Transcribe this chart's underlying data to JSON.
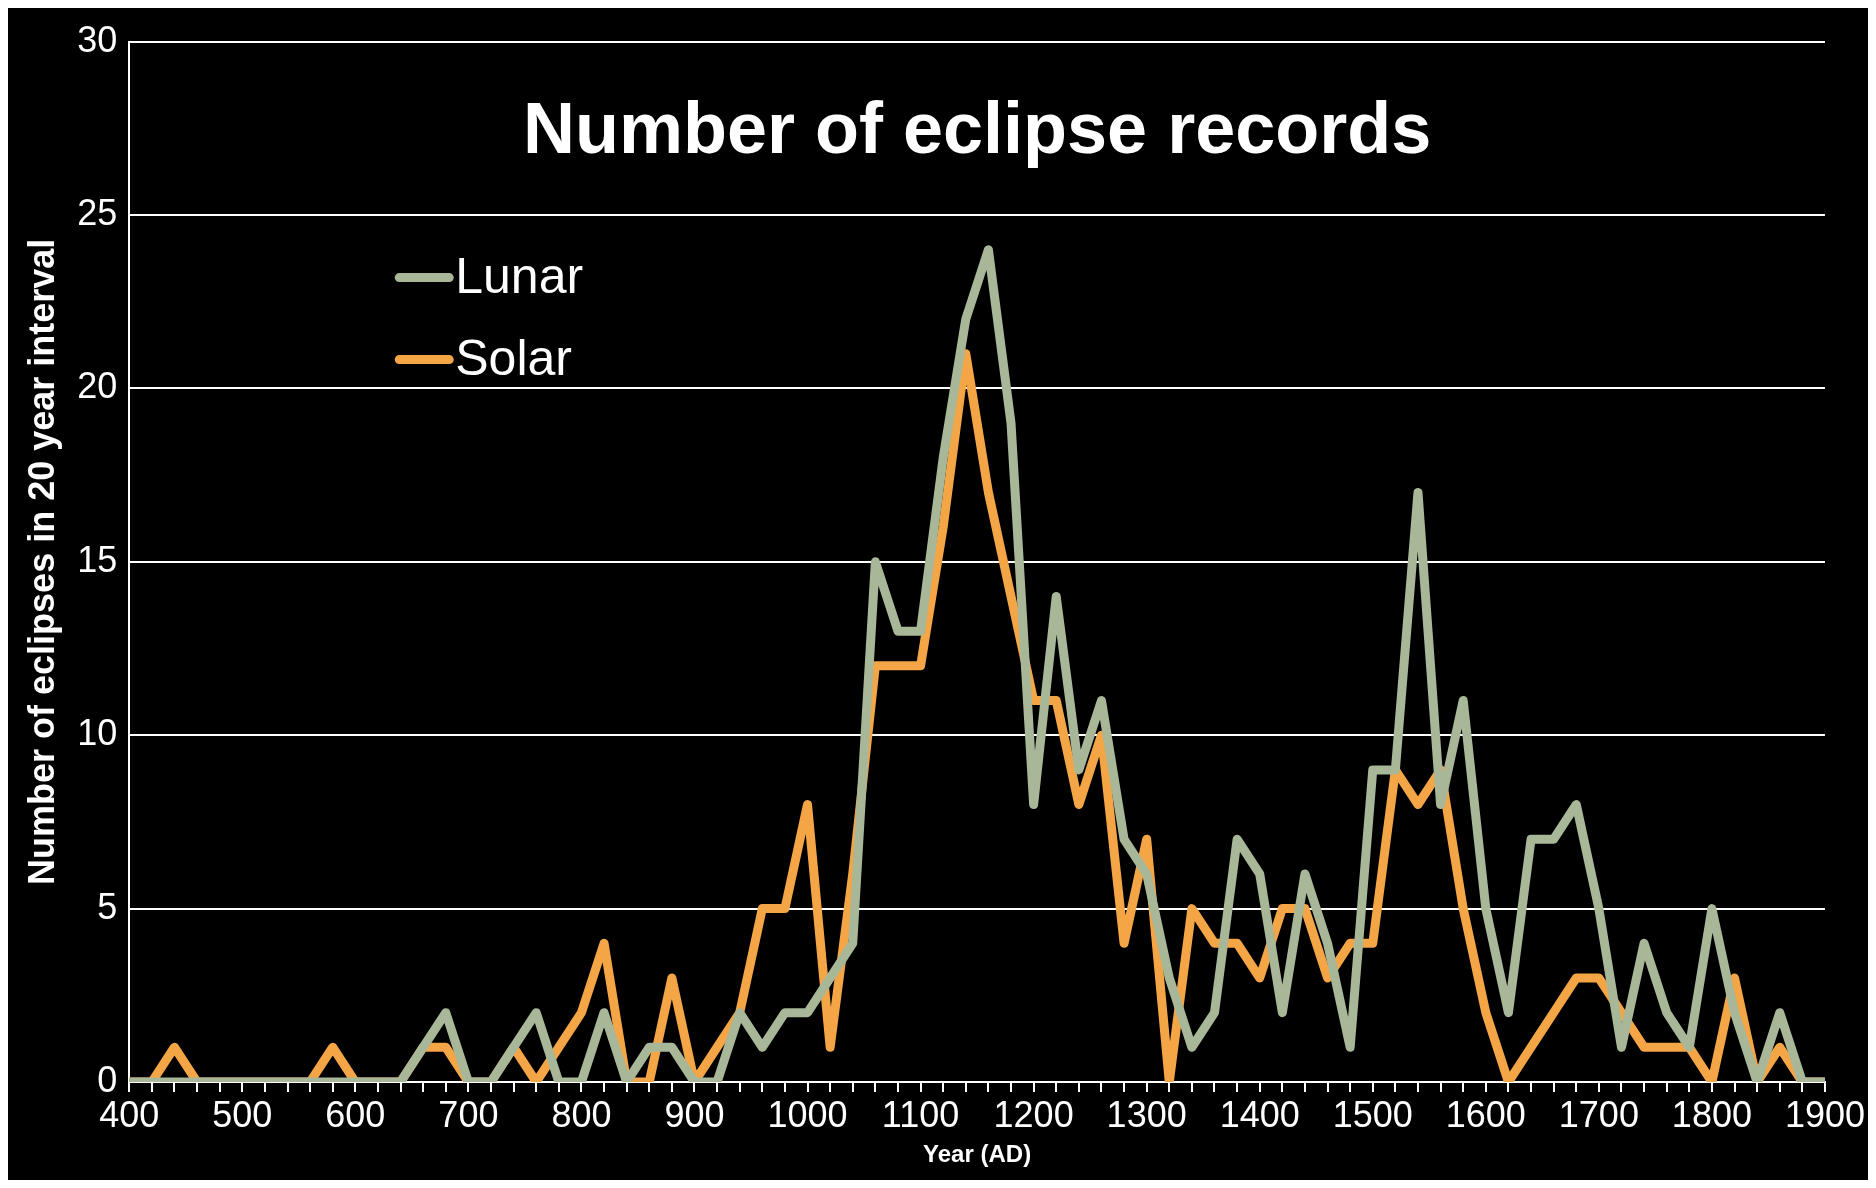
{
  "chart_data": {
    "type": "line",
    "title": "Number of eclipse records",
    "xlabel": "Year (AD)",
    "ylabel": "Number of eclipses in 20 year interval",
    "x": [
      400,
      420,
      440,
      460,
      480,
      500,
      520,
      540,
      560,
      580,
      600,
      620,
      640,
      660,
      680,
      700,
      720,
      740,
      760,
      780,
      800,
      820,
      840,
      860,
      880,
      900,
      920,
      940,
      960,
      980,
      1000,
      1020,
      1040,
      1060,
      1080,
      1100,
      1120,
      1140,
      1160,
      1180,
      1200,
      1220,
      1240,
      1260,
      1280,
      1300,
      1320,
      1340,
      1360,
      1380,
      1400,
      1420,
      1440,
      1460,
      1480,
      1500,
      1520,
      1540,
      1560,
      1580,
      1600,
      1620,
      1640,
      1660,
      1680,
      1700,
      1720,
      1740,
      1760,
      1780,
      1800,
      1820,
      1840,
      1860,
      1880,
      1900
    ],
    "series": [
      {
        "name": "Lunar",
        "color": "#a7b797",
        "values": [
          0,
          0,
          0,
          0,
          0,
          0,
          0,
          0,
          0,
          0,
          0,
          0,
          0,
          1,
          2,
          0,
          0,
          1,
          2,
          0,
          0,
          2,
          0,
          1,
          1,
          0,
          0,
          2,
          1,
          2,
          2,
          3,
          4,
          15,
          13,
          13,
          18,
          22,
          24,
          19,
          8,
          14,
          9,
          11,
          7,
          6,
          3,
          1,
          2,
          7,
          6,
          2,
          6,
          4,
          1,
          9,
          9,
          17,
          8,
          11,
          5,
          2,
          7,
          7,
          8,
          5,
          1,
          4,
          2,
          1,
          5,
          2,
          0,
          2,
          0,
          0
        ]
      },
      {
        "name": "Solar",
        "color": "#f4a546",
        "values": [
          0,
          0,
          1,
          0,
          0,
          0,
          0,
          0,
          0,
          1,
          0,
          0,
          0,
          1,
          1,
          0,
          0,
          1,
          0,
          1,
          2,
          4,
          0,
          0,
          3,
          0,
          1,
          2,
          5,
          5,
          8,
          1,
          6,
          12,
          12,
          12,
          16,
          21,
          17,
          14,
          11,
          11,
          8,
          10,
          4,
          7,
          0,
          5,
          4,
          4,
          3,
          5,
          5,
          3,
          4,
          4,
          9,
          8,
          9,
          5,
          2,
          0,
          1,
          2,
          3,
          3,
          2,
          1,
          1,
          1,
          0,
          3,
          0,
          1,
          0,
          0
        ]
      }
    ],
    "xlim": [
      400,
      1900
    ],
    "xticks": [
      400,
      {
        "value": 420,
        "label": null
      },
      {
        "value": 440,
        "label": null
      },
      {
        "value": 460,
        "label": null
      },
      {
        "value": 480,
        "label": null
      },
      500,
      {
        "value": 520,
        "label": null
      },
      {
        "value": 540,
        "label": null
      },
      {
        "value": 560,
        "label": null
      },
      {
        "value": 580,
        "label": null
      },
      600,
      {
        "value": 620,
        "label": null
      },
      {
        "value": 640,
        "label": null
      },
      {
        "value": 660,
        "label": null
      },
      {
        "value": 680,
        "label": null
      },
      700,
      {
        "value": 720,
        "label": null
      },
      {
        "value": 740,
        "label": null
      },
      {
        "value": 760,
        "label": null
      },
      {
        "value": 780,
        "label": null
      },
      800,
      {
        "value": 820,
        "label": null
      },
      {
        "value": 840,
        "label": null
      },
      {
        "value": 860,
        "label": null
      },
      {
        "value": 880,
        "label": null
      },
      900,
      {
        "value": 920,
        "label": null
      },
      {
        "value": 940,
        "label": null
      },
      {
        "value": 960,
        "label": null
      },
      {
        "value": 980,
        "label": null
      },
      1000,
      {
        "value": 1020,
        "label": null
      },
      {
        "value": 1040,
        "label": null
      },
      {
        "value": 1060,
        "label": null
      },
      {
        "value": 1080,
        "label": null
      },
      1100,
      {
        "value": 1120,
        "label": null
      },
      {
        "value": 1140,
        "label": null
      },
      {
        "value": 1160,
        "label": null
      },
      {
        "value": 1180,
        "label": null
      },
      1200,
      {
        "value": 1220,
        "label": null
      },
      {
        "value": 1240,
        "label": null
      },
      {
        "value": 1260,
        "label": null
      },
      {
        "value": 1280,
        "label": null
      },
      1300,
      {
        "value": 1320,
        "label": null
      },
      {
        "value": 1340,
        "label": null
      },
      {
        "value": 1360,
        "label": null
      },
      {
        "value": 1380,
        "label": null
      },
      1400,
      {
        "value": 1420,
        "label": null
      },
      {
        "value": 1440,
        "label": null
      },
      {
        "value": 1460,
        "label": null
      },
      {
        "value": 1480,
        "label": null
      },
      1500,
      {
        "value": 1520,
        "label": null
      },
      {
        "value": 1540,
        "label": null
      },
      {
        "value": 1560,
        "label": null
      },
      {
        "value": 1580,
        "label": null
      },
      1600,
      {
        "value": 1620,
        "label": null
      },
      {
        "value": 1640,
        "label": null
      },
      {
        "value": 1660,
        "label": null
      },
      {
        "value": 1680,
        "label": null
      },
      1700,
      {
        "value": 1720,
        "label": null
      },
      {
        "value": 1740,
        "label": null
      },
      {
        "value": 1760,
        "label": null
      },
      {
        "value": 1780,
        "label": null
      },
      1800,
      {
        "value": 1820,
        "label": null
      },
      {
        "value": 1840,
        "label": null
      },
      {
        "value": 1860,
        "label": null
      },
      {
        "value": 1880,
        "label": null
      },
      1900
    ],
    "ylim": [
      0,
      30
    ],
    "yticks": [
      0,
      5,
      10,
      15,
      20,
      25,
      30
    ],
    "grid": "y",
    "legend": "top left",
    "marker": "none",
    "line_style": "solid"
  }
}
